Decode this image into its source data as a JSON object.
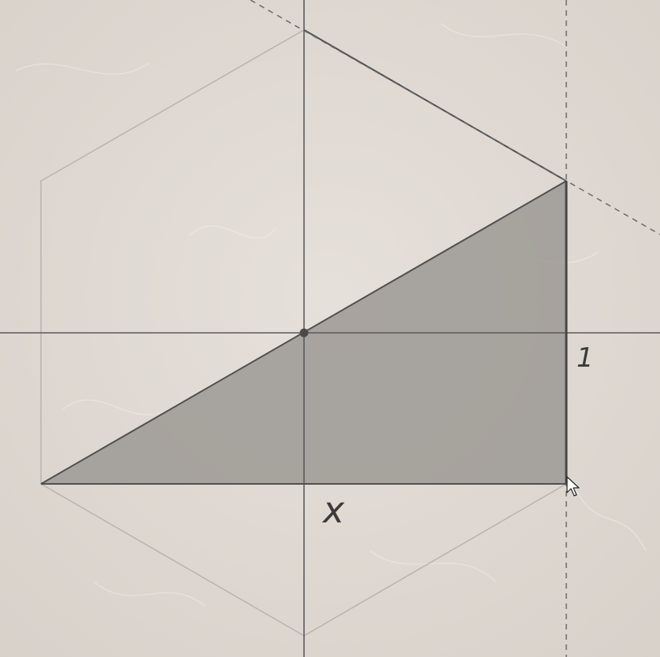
{
  "colors": {
    "paper": "#e2dcd5",
    "paper_shade": "#d6cfc7",
    "triangle_fill": "#9a9691",
    "axis_line": "#5a5a5a",
    "hexagon_line": "#b8b3ae",
    "edge_line": "#505050",
    "dashed_line": "#6a6a6a",
    "label": "#3a3a3a"
  },
  "labels": {
    "side_vertical": "1",
    "side_horizontal": "x"
  },
  "icons": {
    "cursor": "mouse-pointer-icon",
    "center": "center-point-icon"
  }
}
